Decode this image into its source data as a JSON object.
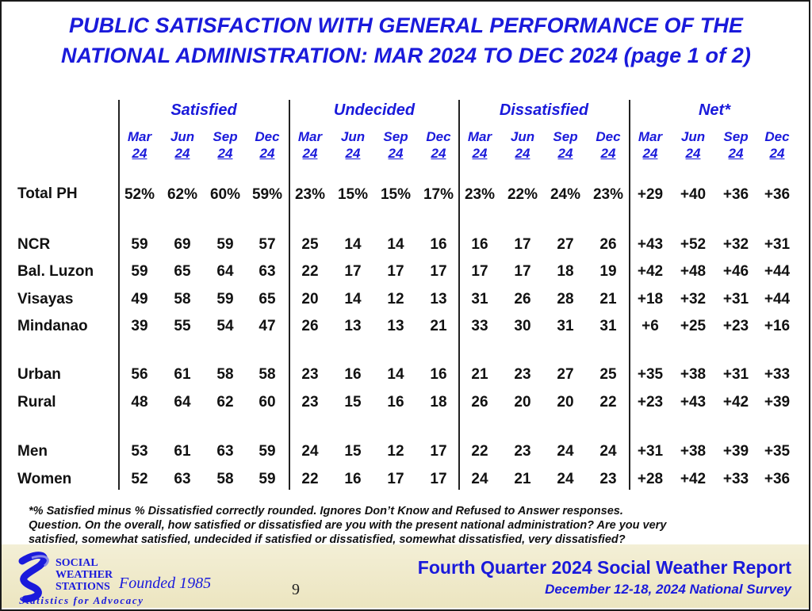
{
  "title": {
    "line1": "PUBLIC SATISFACTION WITH GENERAL PERFORMANCE OF THE",
    "line2": "NATIONAL ADMINISTRATION: MAR 2024 TO DEC 2024 (page 1 of 2)"
  },
  "chart_data": {
    "type": "table",
    "groups": [
      "Satisfied",
      "Undecided",
      "Dissatisfied",
      "Net*"
    ],
    "periods": [
      {
        "month": "Mar",
        "year": "24"
      },
      {
        "month": "Jun",
        "year": "24"
      },
      {
        "month": "Sep",
        "year": "24"
      },
      {
        "month": "Dec",
        "year": "24"
      }
    ],
    "rows": [
      {
        "label": "Total PH",
        "values": [
          "52%",
          "62%",
          "60%",
          "59%",
          "23%",
          "15%",
          "15%",
          "17%",
          "23%",
          "22%",
          "24%",
          "23%",
          "+29",
          "+40",
          "+36",
          "+36"
        ]
      },
      {
        "label": "NCR",
        "values": [
          "59",
          "69",
          "59",
          "57",
          "25",
          "14",
          "14",
          "16",
          "16",
          "17",
          "27",
          "26",
          "+43",
          "+52",
          "+32",
          "+31"
        ]
      },
      {
        "label": "Bal. Luzon",
        "values": [
          "59",
          "65",
          "64",
          "63",
          "22",
          "17",
          "17",
          "17",
          "17",
          "17",
          "18",
          "19",
          "+42",
          "+48",
          "+46",
          "+44"
        ]
      },
      {
        "label": "Visayas",
        "values": [
          "49",
          "58",
          "59",
          "65",
          "20",
          "14",
          "12",
          "13",
          "31",
          "26",
          "28",
          "21",
          "+18",
          "+32",
          "+31",
          "+44"
        ]
      },
      {
        "label": "Mindanao",
        "values": [
          "39",
          "55",
          "54",
          "47",
          "26",
          "13",
          "13",
          "21",
          "33",
          "30",
          "31",
          "31",
          "+6",
          "+25",
          "+23",
          "+16"
        ]
      },
      {
        "label": "Urban",
        "values": [
          "56",
          "61",
          "58",
          "58",
          "23",
          "16",
          "14",
          "16",
          "21",
          "23",
          "27",
          "25",
          "+35",
          "+38",
          "+31",
          "+33"
        ]
      },
      {
        "label": "Rural",
        "values": [
          "48",
          "64",
          "62",
          "60",
          "23",
          "15",
          "16",
          "18",
          "26",
          "20",
          "20",
          "22",
          "+23",
          "+43",
          "+42",
          "+39"
        ]
      },
      {
        "label": "Men",
        "values": [
          "53",
          "61",
          "63",
          "59",
          "24",
          "15",
          "12",
          "17",
          "22",
          "23",
          "24",
          "24",
          "+31",
          "+38",
          "+39",
          "+35"
        ]
      },
      {
        "label": "Women",
        "values": [
          "52",
          "63",
          "58",
          "59",
          "22",
          "16",
          "17",
          "17",
          "24",
          "21",
          "24",
          "23",
          "+28",
          "+42",
          "+33",
          "+36"
        ]
      }
    ]
  },
  "footnote": {
    "line1": "*% Satisfied minus % Dissatisfied correctly rounded. Ignores Don’t Know and Refused to Answer responses.",
    "line2": "Question. On the overall, how satisfied or dissatisfied are you with the present national administration? Are you very",
    "line3": "satisfied, somewhat satisfied, undecided if satisfied or dissatisfied, somewhat dissatisfied, very dissatisfied?"
  },
  "footer": {
    "logo_line1": "SOCIAL",
    "logo_line2": "WEATHER",
    "logo_line3": "STATIONS",
    "logo_founded": "Founded 1985",
    "logo_tagline": "Statistics for Advocacy",
    "page_number": "9",
    "report_title": "Fourth Quarter 2024 Social Weather Report",
    "survey_dates": "December 12-18, 2024 National Survey"
  },
  "colors": {
    "accent_blue": "#1a1adb",
    "footer_band": "#efe9c8"
  }
}
